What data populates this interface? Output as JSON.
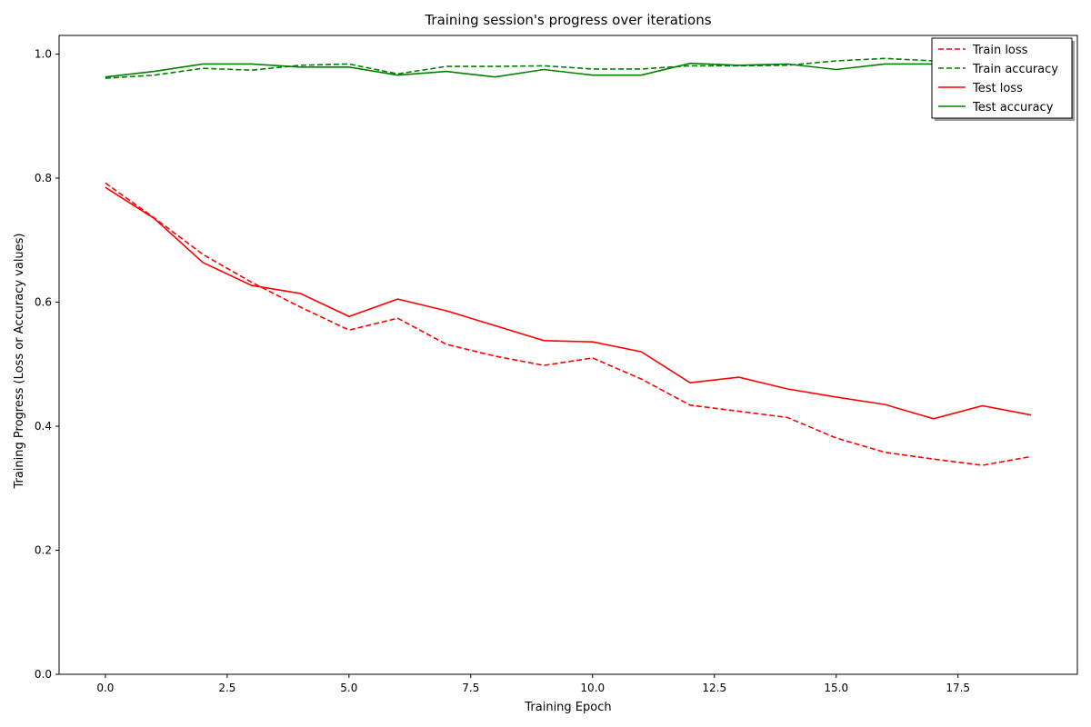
{
  "chart_data": {
    "type": "line",
    "title": "Training session's progress over iterations",
    "xlabel": "Training Epoch",
    "ylabel": "Training Progress (Loss or Accuracy values)",
    "xlim": [
      -0.95,
      19.95
    ],
    "ylim": [
      0.0,
      1.03
    ],
    "xticks": [
      0.0,
      2.5,
      5.0,
      7.5,
      10.0,
      12.5,
      15.0,
      17.5
    ],
    "xtick_labels": [
      "0.0",
      "2.5",
      "5.0",
      "7.5",
      "10.0",
      "12.5",
      "15.0",
      "17.5"
    ],
    "yticks": [
      0.0,
      0.2,
      0.4,
      0.6,
      0.8,
      1.0
    ],
    "ytick_labels": [
      "0.0",
      "0.2",
      "0.4",
      "0.6",
      "0.8",
      "1.0"
    ],
    "grid": false,
    "legend_position": "top-right",
    "x": [
      0,
      1,
      2,
      3,
      4,
      5,
      6,
      7,
      8,
      9,
      10,
      11,
      12,
      13,
      14,
      15,
      16,
      17,
      18,
      19
    ],
    "series": [
      {
        "name": "Train loss",
        "color": "#ff0000",
        "style": "dashed",
        "values": [
          0.792,
          0.736,
          0.677,
          0.632,
          0.592,
          0.555,
          0.574,
          0.532,
          0.513,
          0.498,
          0.51,
          0.476,
          0.434,
          0.424,
          0.414,
          0.381,
          0.358,
          0.347,
          0.337,
          0.351
        ]
      },
      {
        "name": "Train accuracy",
        "color": "#008000",
        "style": "dashed",
        "values": [
          0.961,
          0.966,
          0.977,
          0.974,
          0.982,
          0.984,
          0.968,
          0.98,
          0.98,
          0.981,
          0.976,
          0.976,
          0.981,
          0.981,
          0.982,
          0.989,
          0.993,
          0.989,
          0.994,
          0.996
        ]
      },
      {
        "name": "Test loss",
        "color": "#ff0000",
        "style": "solid",
        "values": [
          0.785,
          0.735,
          0.664,
          0.627,
          0.614,
          0.577,
          0.605,
          0.586,
          0.562,
          0.538,
          0.536,
          0.52,
          0.47,
          0.479,
          0.46,
          0.447,
          0.435,
          0.412,
          0.433,
          0.418
        ]
      },
      {
        "name": "Test accuracy",
        "color": "#008000",
        "style": "solid",
        "values": [
          0.963,
          0.972,
          0.984,
          0.984,
          0.979,
          0.979,
          0.966,
          0.972,
          0.963,
          0.975,
          0.966,
          0.966,
          0.985,
          0.982,
          0.984,
          0.975,
          0.984,
          0.984,
          0.985,
          0.986
        ]
      }
    ]
  }
}
